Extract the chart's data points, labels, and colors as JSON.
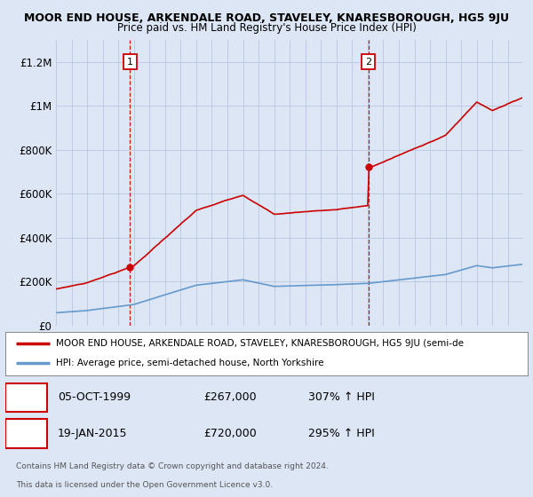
{
  "title": "MOOR END HOUSE, ARKENDALE ROAD, STAVELEY, KNARESBOROUGH, HG5 9JU",
  "subtitle": "Price paid vs. HM Land Registry's House Price Index (HPI)",
  "ylim": [
    0,
    1300000
  ],
  "yticks": [
    0,
    200000,
    400000,
    600000,
    800000,
    1000000,
    1200000
  ],
  "ytick_labels": [
    "£0",
    "£200K",
    "£400K",
    "£600K",
    "£800K",
    "£1M",
    "£1.2M"
  ],
  "line1_color": "#cc0000",
  "line2_color": "#6699cc",
  "legend_line1": "MOOR END HOUSE, ARKENDALE ROAD, STAVELEY, KNARESBOROUGH, HG5 9JU (semi-de",
  "legend_line2": "HPI: Average price, semi-detached house, North Yorkshire",
  "point1_date": "05-OCT-1999",
  "point1_price": "£267,000",
  "point1_hpi": "307% ↑ HPI",
  "point1_year": 1999.75,
  "point1_value": 267000,
  "point2_date": "19-JAN-2015",
  "point2_price": "£720,000",
  "point2_hpi": "295% ↑ HPI",
  "point2_year": 2015.05,
  "point2_value": 720000,
  "footer1": "Contains HM Land Registry data © Crown copyright and database right 2024.",
  "footer2": "This data is licensed under the Open Government Licence v3.0.",
  "background_color": "#dce6f5",
  "plot_bg_color": "#dce6f5",
  "grid_color": "#b8c8e0"
}
